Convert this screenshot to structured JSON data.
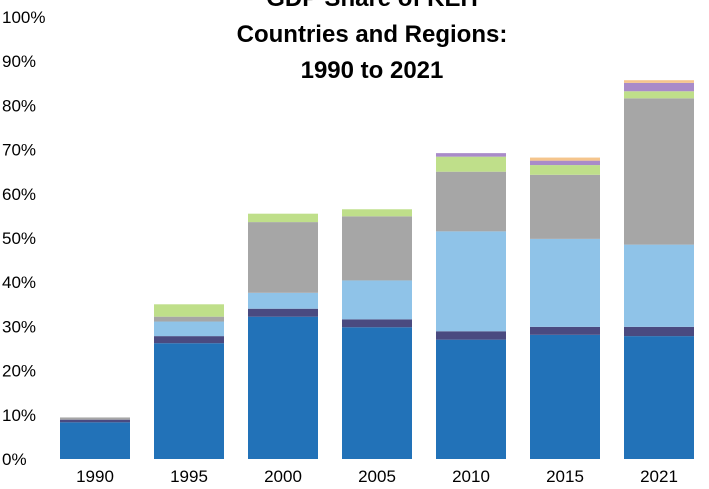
{
  "chart_data": {
    "type": "bar",
    "stacked": true,
    "title_lines": [
      "GDP Share of KEH",
      "Countries and Regions:",
      "1990 to 2021"
    ],
    "xlabel": "",
    "ylabel": "",
    "ylim": [
      0,
      100
    ],
    "yticks": [
      "0%",
      "10%",
      "20%",
      "30%",
      "40%",
      "50%",
      "60%",
      "70%",
      "80%",
      "90%",
      "100%"
    ],
    "ytick_values": [
      0,
      10,
      20,
      30,
      40,
      50,
      60,
      70,
      80,
      90,
      100
    ],
    "categories": [
      "1990",
      "1995",
      "2000",
      "2005",
      "2010",
      "2015",
      "2021"
    ],
    "grid": false,
    "legend": "none",
    "series": [
      {
        "color": "#2272b8",
        "values": [
          8.3,
          26.2,
          32.2,
          29.8,
          27.0,
          28.1,
          27.8
        ]
      },
      {
        "color": "#4a4a80",
        "values": [
          0.6,
          1.6,
          1.8,
          1.8,
          1.9,
          1.8,
          2.1
        ]
      },
      {
        "color": "#8fc3e8",
        "values": [
          0.0,
          3.3,
          3.6,
          8.8,
          22.6,
          19.9,
          18.6
        ]
      },
      {
        "color": "#a6a6a6",
        "values": [
          0.5,
          1.1,
          16.0,
          14.5,
          13.5,
          14.5,
          33.1
        ]
      },
      {
        "color": "#bfdf8a",
        "values": [
          0.0,
          2.8,
          1.9,
          1.6,
          3.4,
          2.2,
          1.6
        ]
      },
      {
        "color": "#a98bc9",
        "values": [
          0.0,
          0.0,
          0.0,
          0.0,
          0.8,
          1.0,
          1.9
        ]
      },
      {
        "color": "#f5c58c",
        "values": [
          0.0,
          0.0,
          0.0,
          0.0,
          0.0,
          0.7,
          0.6
        ]
      }
    ]
  }
}
